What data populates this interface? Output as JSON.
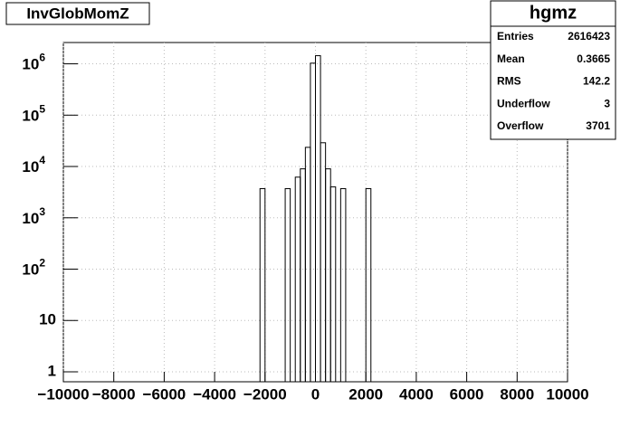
{
  "chart_data": {
    "type": "histogram",
    "title": "InvGlobMomZ",
    "bins": [
      -10000,
      -9800,
      -9600,
      -9400,
      -9200,
      -9000,
      -8800,
      -8600,
      -8400,
      -8200,
      -8000,
      -7800,
      -7600,
      -7400,
      -7200,
      -7000,
      -6800,
      -6600,
      -6400,
      -6200,
      -6000,
      -5800,
      -5600,
      -5400,
      -5200,
      -5000,
      -4800,
      -4600,
      -4400,
      -4200,
      -4000,
      -3800,
      -3600,
      -3400,
      -3200,
      -3000,
      -2800,
      -2600,
      -2400,
      -2200,
      -2000,
      -1800,
      -1600,
      -1400,
      -1200,
      -1000,
      -800,
      -600,
      -400,
      -200,
      0,
      200,
      400,
      600,
      800,
      1000,
      1200,
      1400,
      1600,
      1800,
      2000,
      2200,
      2400,
      2600,
      2800,
      3000,
      3200,
      3400,
      3600,
      3800,
      4000,
      4200,
      4400,
      4600,
      4800,
      5000,
      5200,
      5400,
      5600,
      5800,
      6000,
      6200,
      6400,
      6600,
      6800,
      7000,
      7200,
      7400,
      7600,
      7800,
      8000,
      8200,
      8400,
      8600,
      8800,
      9000,
      9200,
      9400,
      9600,
      9800,
      10000
    ],
    "values": [
      0,
      0,
      0,
      0,
      0,
      0,
      0,
      0,
      0,
      0,
      0,
      0,
      0,
      0,
      0,
      0,
      0,
      0,
      0,
      0,
      0,
      0,
      0,
      0,
      0,
      0,
      0,
      0,
      0,
      0,
      0,
      0,
      0,
      0,
      0,
      0,
      0,
      0,
      0,
      3700,
      0,
      0,
      0,
      0,
      3700,
      0,
      6200,
      9000,
      23600,
      1030000,
      1440000,
      29000,
      9000,
      4000,
      0,
      3700,
      0,
      0,
      0,
      0,
      3700,
      0,
      0,
      0,
      0,
      0,
      0,
      0,
      0,
      0,
      0,
      0,
      0,
      0,
      0,
      0,
      0,
      0,
      0,
      0,
      0,
      0,
      0,
      0,
      0,
      0,
      0,
      0,
      0,
      0,
      0,
      0,
      0,
      0,
      0,
      0,
      0,
      0,
      0,
      0
    ],
    "color": "#000000",
    "log_y": true,
    "grid": true,
    "xlim": [
      -10000,
      10000
    ],
    "xticks": [
      {
        "value": -10000,
        "label": "−10000"
      },
      {
        "value": -8000,
        "label": "−8000"
      },
      {
        "value": -6000,
        "label": "−6000"
      },
      {
        "value": -4000,
        "label": "−4000"
      },
      {
        "value": -2000,
        "label": "−2000"
      },
      0,
      2000,
      4000,
      6000,
      8000,
      10000
    ],
    "ylim": [
      0.64,
      2600000
    ],
    "yticks": [
      1,
      10,
      {
        "value": 100,
        "label": "10",
        "exponent": "2"
      },
      {
        "value": 1000,
        "label": "10",
        "exponent": "3"
      },
      {
        "value": 10000,
        "label": "10",
        "exponent": "4"
      },
      {
        "value": 100000,
        "label": "10",
        "exponent": "5"
      },
      {
        "value": 1000000,
        "label": "10",
        "exponent": "6"
      }
    ],
    "stats": {
      "title": "hgmz",
      "rows": [
        [
          "Entries",
          "2616423"
        ],
        [
          "Mean",
          "0.3665"
        ],
        [
          "RMS",
          "142.2"
        ],
        [
          "Underflow",
          "3"
        ],
        [
          "Overflow",
          "3701"
        ]
      ]
    }
  }
}
